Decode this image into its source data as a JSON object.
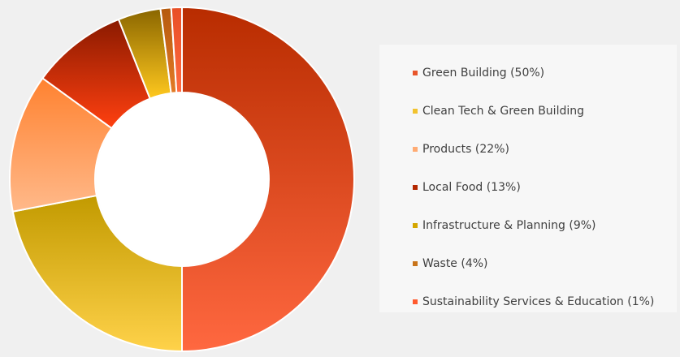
{
  "chart_data": {
    "type": "pie",
    "donut": true,
    "title": "",
    "start_angle_deg": 0,
    "direction": "clockwise",
    "slices": [
      {
        "label": "",
        "value": 50,
        "color_light": "#ff6840",
        "color_dark": "#b82c00",
        "stroke": "#ffffff"
      },
      {
        "label": "",
        "value": 22,
        "color_light": "#ffd24a",
        "color_dark": "#c29a00",
        "stroke": "#ffffff"
      },
      {
        "label": "",
        "value": 13,
        "color_light": "#ffb98a",
        "color_dark": "#ff8230",
        "stroke": "#ffffff"
      },
      {
        "label": "",
        "value": 9,
        "color_light": "#ff4010",
        "color_dark": "#8a1a00",
        "stroke": "#ffffff"
      },
      {
        "label": "",
        "value": 4,
        "color_light": "#ffc81e",
        "color_dark": "#8a6600",
        "stroke": "#ffffff"
      },
      {
        "label": "",
        "value": 1,
        "color_light": "#e27a26",
        "color_dark": "#b55a0e",
        "stroke": "#ffffff"
      },
      {
        "label": "",
        "value": 1,
        "color_light": "#ff6a40",
        "color_dark": "#e84f26",
        "stroke": "#ffffff"
      }
    ],
    "legend_placement": "right",
    "legend": [
      {
        "label": "Green Building (50%)",
        "color": "#e8552a"
      },
      {
        "label": "Clean Tech & Green Building",
        "color": "#f2c32e"
      },
      {
        "label": "Products (22%)",
        "color": "#ffab73"
      },
      {
        "label": "Local Food (13%)",
        "color": "#b32700"
      },
      {
        "label": "Infrastructure & Planning (9%)",
        "color": "#d4a600"
      },
      {
        "label": "Waste (4%)",
        "color": "#c8741a"
      },
      {
        "label": "Sustainability Services & Education (1%)",
        "color": "#ff5a2e"
      }
    ]
  }
}
